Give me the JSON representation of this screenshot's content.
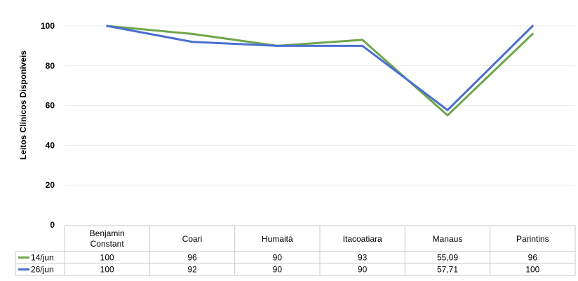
{
  "chart_data": {
    "type": "line",
    "ylabel": "Leitos Clínicos Disponíveis",
    "xlabel": "",
    "ylim": [
      0,
      100
    ],
    "yticks": [
      0,
      20,
      40,
      60,
      80,
      100
    ],
    "grid": true,
    "legend": "table-below",
    "categories": [
      {
        "line1": "Benjamin",
        "line2": "Constant"
      },
      {
        "line1": "Coari",
        "line2": ""
      },
      {
        "line1": "Humaitá",
        "line2": ""
      },
      {
        "line1": "Itacoatiara",
        "line2": ""
      },
      {
        "line1": "Manaus",
        "line2": ""
      },
      {
        "line1": "Parintins",
        "line2": ""
      }
    ],
    "series": [
      {
        "name": "14/jun",
        "color": "#6ea64b",
        "values": [
          100,
          96,
          90,
          93,
          55.09,
          96
        ],
        "labels": [
          "100",
          "96",
          "90",
          "93",
          "55,09",
          "96"
        ]
      },
      {
        "name": "26/jun",
        "color": "#4a6fd0",
        "values": [
          100,
          92,
          90,
          90,
          57.71,
          100
        ],
        "labels": [
          "100",
          "92",
          "90",
          "90",
          "57,71",
          "100"
        ]
      }
    ]
  }
}
